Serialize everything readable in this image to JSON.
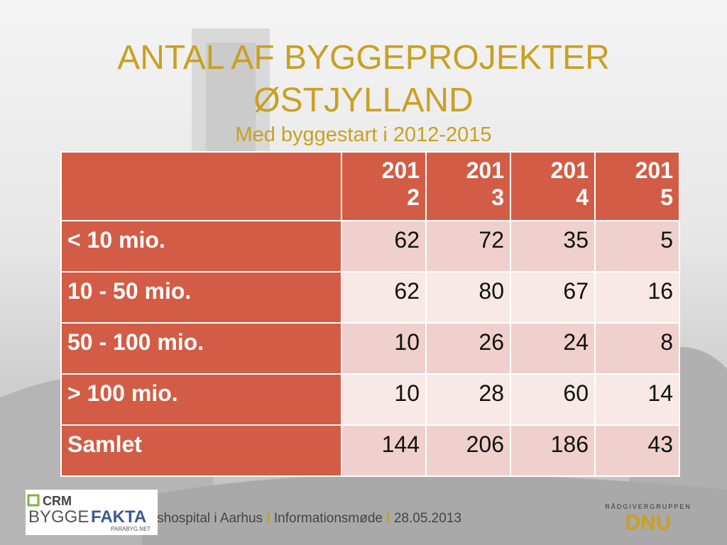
{
  "title": [
    "ANTAL AF BYGGEPROJEKTER",
    "ØSTJYLLAND"
  ],
  "subtitle": "Med byggestart i 2012-2015",
  "table": {
    "header": [
      "2012",
      "2013",
      "2014",
      "2015"
    ],
    "rows": [
      {
        "label": "< 10 mio.",
        "values": [
          62,
          72,
          35,
          5
        ]
      },
      {
        "label": "10 - 50 mio.",
        "values": [
          62,
          80,
          67,
          16
        ]
      },
      {
        "label": "50 - 100 mio.",
        "values": [
          10,
          26,
          24,
          8
        ]
      },
      {
        "label": "> 100 mio.",
        "values": [
          10,
          28,
          60,
          14
        ]
      },
      {
        "label": "Samlet",
        "values": [
          144,
          206,
          186,
          43
        ]
      }
    ]
  },
  "footer": {
    "parts": [
      "tetshospital i Aarhus",
      "Informationsmøde",
      "28.05.2013"
    ],
    "separator": "I"
  },
  "logos": {
    "crm": {
      "top": "CRM",
      "left": "BYGGE",
      "right": "FAKTA",
      "small": "PARABYG.NET"
    },
    "dnu": {
      "top": "RÅDGIVERGRUPPEN",
      "main": "DNU"
    }
  }
}
